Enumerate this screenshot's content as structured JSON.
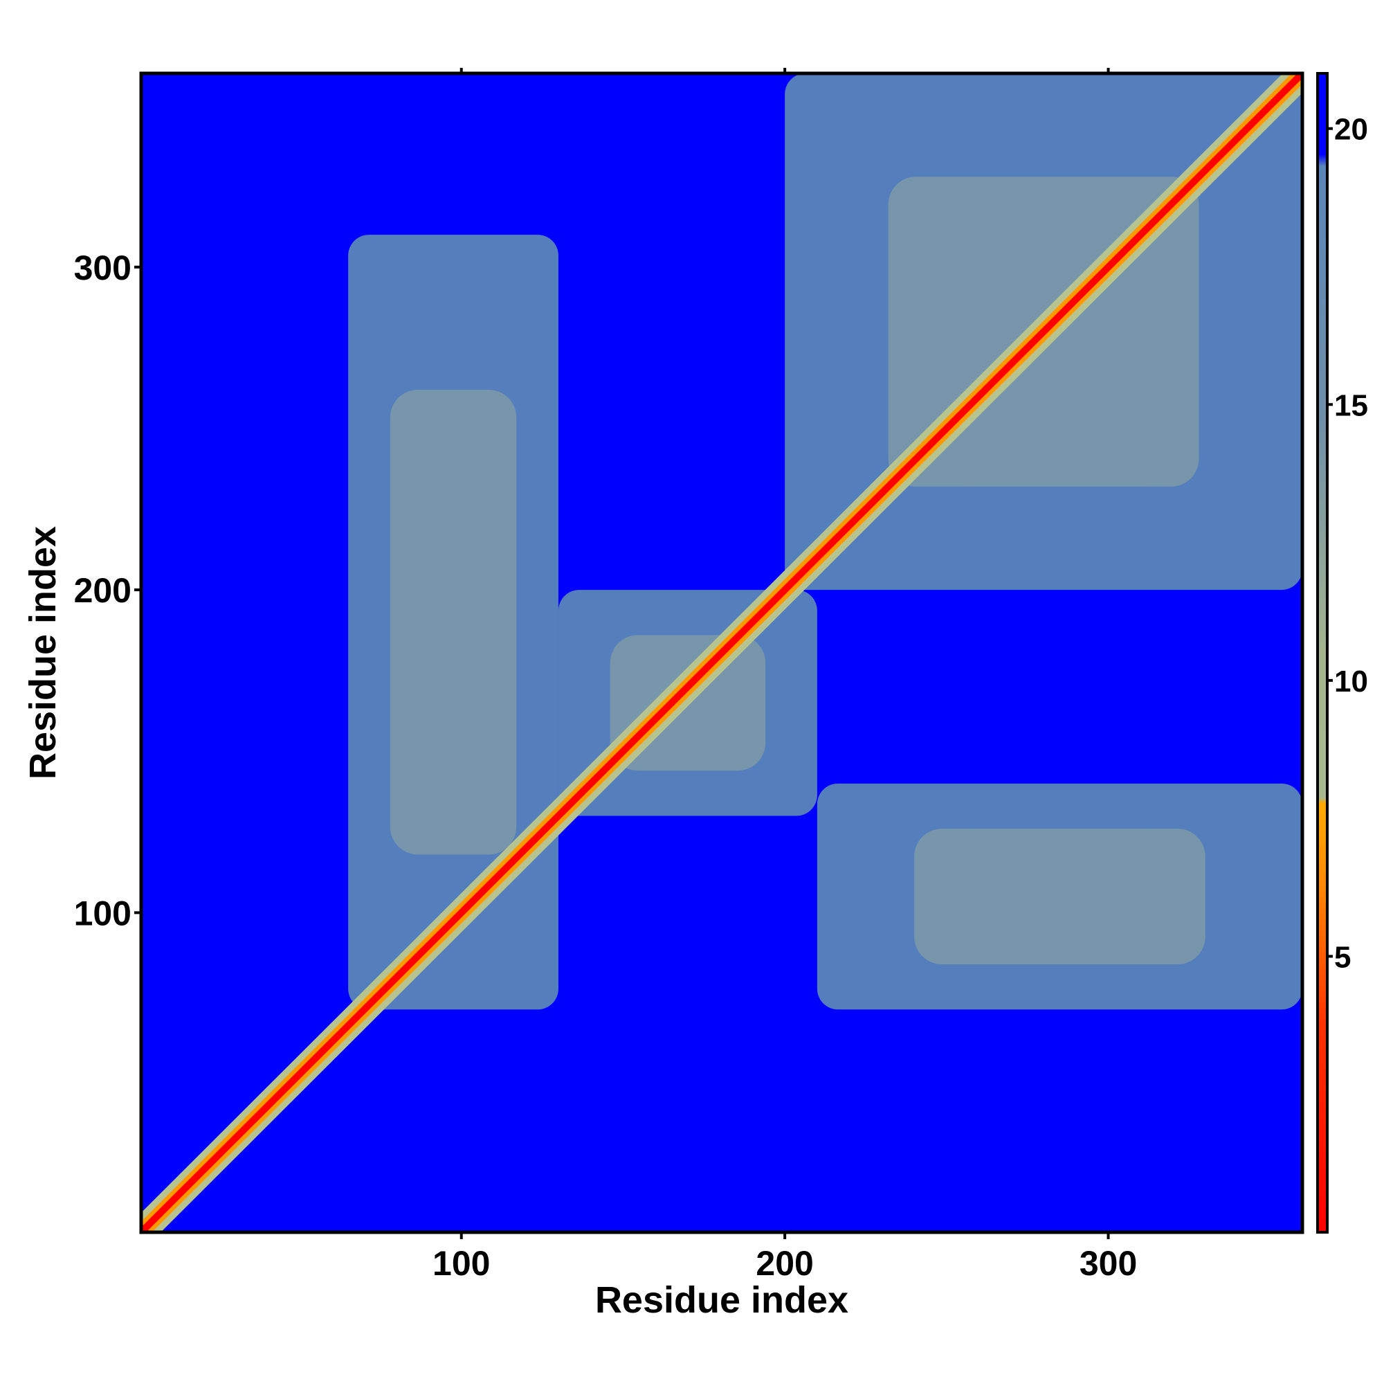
{
  "chart_data": {
    "type": "heatmap",
    "title": "",
    "xlabel": "Residue index",
    "ylabel": "Residue index",
    "xlim": [
      1,
      360
    ],
    "ylim": [
      1,
      360
    ],
    "x_ticks": [
      100,
      200,
      300
    ],
    "y_ticks": [
      100,
      200,
      300
    ],
    "x_tick_labels": [
      "100",
      "200",
      "300"
    ],
    "y_tick_labels": [
      "100",
      "200",
      "300"
    ],
    "grid": false,
    "legend": "colorbar-right",
    "colorbar": {
      "ticks": [
        5,
        10,
        15,
        20
      ],
      "tick_labels": [
        "5",
        "10",
        "15",
        "20"
      ],
      "range": [
        0,
        21
      ],
      "colors": {
        "low": "#ff0000",
        "mid_low": "#ff9900",
        "mid": "#b8c490",
        "high": "#5a86b8",
        "max": "#0000ff"
      }
    },
    "description_of_structure": {
      "diagonal": "low distance values (red) along the main diagonal from residue 1 to 360",
      "background": "values at or above 21 (blue) away from the diagonal",
      "contact_clusters": [
        {
          "x_range": [
            65,
            130
          ],
          "y_range": [
            70,
            310
          ],
          "level": "mid"
        },
        {
          "x_range": [
            130,
            210
          ],
          "y_range": [
            130,
            200
          ],
          "level": "mid"
        },
        {
          "x_range": [
            200,
            360
          ],
          "y_range": [
            200,
            360
          ],
          "level": "mid"
        },
        {
          "x_range": [
            210,
            360
          ],
          "y_range": [
            70,
            140
          ],
          "level": "mid"
        }
      ]
    }
  }
}
